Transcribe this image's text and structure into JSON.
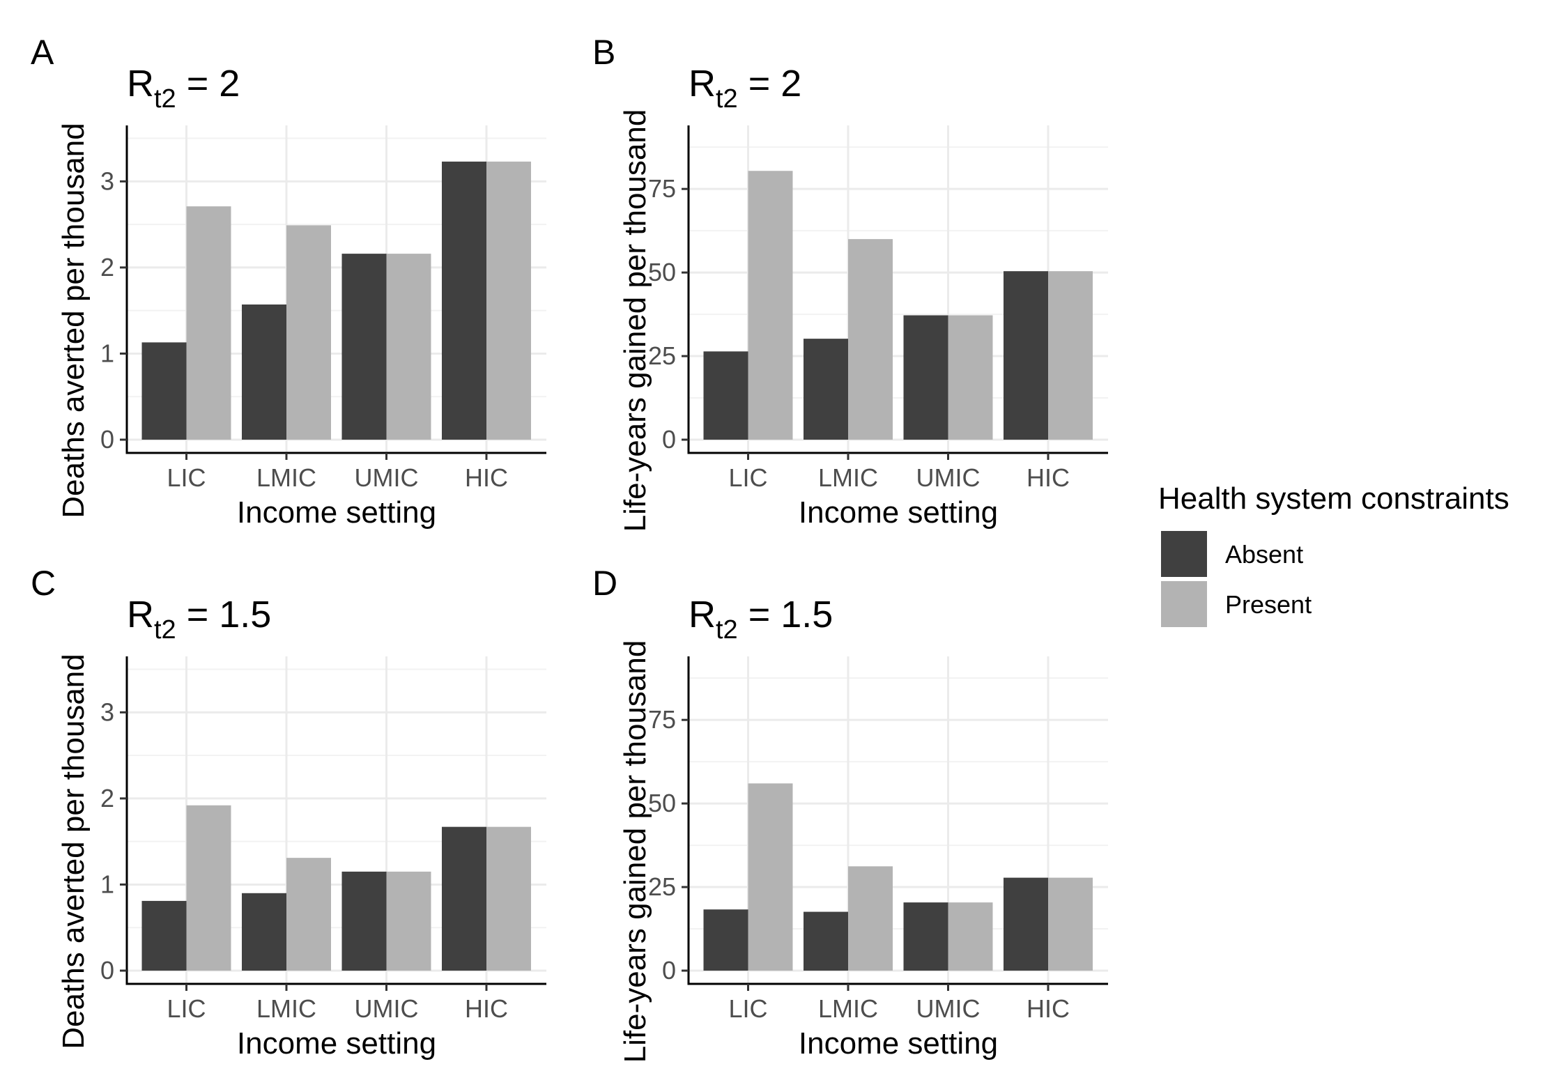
{
  "chart_data": [
    {
      "type": "bar",
      "panel_label": "A",
      "title": {
        "base": "R",
        "sub": "t2",
        "eq": " = 2"
      },
      "xlabel": "Income setting",
      "ylabel": "Deaths averted per thousand",
      "categories": [
        "LIC",
        "LMIC",
        "UMIC",
        "HIC"
      ],
      "yticks": [
        "0",
        "1",
        "2",
        "3"
      ],
      "ylim": [
        0,
        3.65
      ],
      "series": [
        {
          "name": "Absent",
          "values": [
            1.13,
            1.57,
            2.16,
            3.23
          ]
        },
        {
          "name": "Present",
          "values": [
            2.71,
            2.49,
            2.16,
            3.23
          ]
        }
      ]
    },
    {
      "type": "bar",
      "panel_label": "B",
      "title": {
        "base": "R",
        "sub": "t2",
        "eq": " = 2"
      },
      "xlabel": "Income setting",
      "ylabel": "Life-years gained per thousand",
      "categories": [
        "LIC",
        "LMIC",
        "UMIC",
        "HIC"
      ],
      "yticks": [
        "0",
        "25",
        "50",
        "75"
      ],
      "ylim": [
        0,
        94
      ],
      "series": [
        {
          "name": "Absent",
          "values": [
            26.4,
            30.2,
            37.2,
            50.4
          ]
        },
        {
          "name": "Present",
          "values": [
            80.4,
            60.0,
            37.2,
            50.4
          ]
        }
      ]
    },
    {
      "type": "bar",
      "panel_label": "C",
      "title": {
        "base": "R",
        "sub": "t2",
        "eq": " = 1.5"
      },
      "xlabel": "Income setting",
      "ylabel": "Deaths averted per thousand",
      "categories": [
        "LIC",
        "LMIC",
        "UMIC",
        "HIC"
      ],
      "yticks": [
        "0",
        "1",
        "2",
        "3"
      ],
      "ylim": [
        0,
        3.65
      ],
      "series": [
        {
          "name": "Absent",
          "values": [
            0.81,
            0.9,
            1.15,
            1.67
          ]
        },
        {
          "name": "Present",
          "values": [
            1.92,
            1.31,
            1.15,
            1.67
          ]
        }
      ]
    },
    {
      "type": "bar",
      "panel_label": "D",
      "title": {
        "base": "R",
        "sub": "t2",
        "eq": " = 1.5"
      },
      "xlabel": "Income setting",
      "ylabel": "Life-years gained per thousand",
      "categories": [
        "LIC",
        "LMIC",
        "UMIC",
        "HIC"
      ],
      "yticks": [
        "0",
        "25",
        "50",
        "75"
      ],
      "ylim": [
        0,
        94
      ],
      "series": [
        {
          "name": "Absent",
          "values": [
            18.3,
            17.6,
            20.4,
            27.8
          ]
        },
        {
          "name": "Present",
          "values": [
            56.0,
            31.2,
            20.4,
            27.8
          ]
        }
      ]
    }
  ],
  "legend": {
    "title": "Health system constraints",
    "items": [
      {
        "label": "Absent",
        "color": "#404040"
      },
      {
        "label": "Present",
        "color": "#b3b3b3"
      }
    ]
  },
  "style": {
    "absent_color": "#404040",
    "present_color": "#b3b3b3",
    "grid_major_color": "#ebebeb",
    "grid_minor_color": "#f2f2f2",
    "axis_color": "#000000"
  }
}
